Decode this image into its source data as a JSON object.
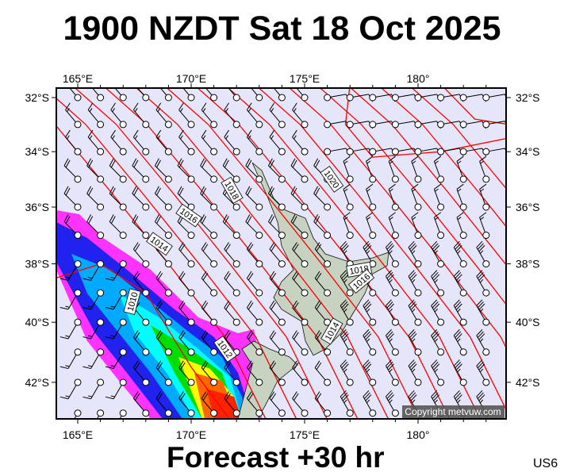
{
  "title": "1900 NZDT Sat 18 Oct 2025",
  "footer": "Forecast +30 hr",
  "model_code": "US6",
  "copyright": "Copyright metvuw.com",
  "colors": {
    "background": "#e6e6fa",
    "isobar": "#ff0000",
    "land": "#c8d2c0",
    "frame": "#000000"
  },
  "axes": {
    "lon_ticks": [
      {
        "value": 165,
        "label": "165°E"
      },
      {
        "value": 170,
        "label": "170°E"
      },
      {
        "value": 175,
        "label": "175°E"
      },
      {
        "value": 180,
        "label": "180°"
      }
    ],
    "lat_ticks": [
      {
        "value": -32,
        "label": "32°S"
      },
      {
        "value": -34,
        "label": "34°S"
      },
      {
        "value": -36,
        "label": "36°S"
      },
      {
        "value": -38,
        "label": "38°S"
      },
      {
        "value": -40,
        "label": "40°S"
      },
      {
        "value": -42,
        "label": "42°S"
      }
    ],
    "lon_range": [
      164.06,
      183.9
    ],
    "lat_range": [
      -31.65,
      -43.3
    ]
  },
  "isobar_labels": [
    {
      "text": "1020",
      "lon": 176.2,
      "lat": -35.0,
      "angle": 55
    },
    {
      "text": "1018",
      "lon": 171.8,
      "lat": -35.4,
      "angle": 60
    },
    {
      "text": "1016",
      "lon": 169.9,
      "lat": -36.3,
      "angle": 35
    },
    {
      "text": "1014",
      "lon": 168.6,
      "lat": -37.3,
      "angle": 35
    },
    {
      "text": "1010",
      "lon": 167.4,
      "lat": -39.3,
      "angle": -75
    },
    {
      "text": "1012",
      "lon": 171.5,
      "lat": -40.9,
      "angle": 55
    },
    {
      "text": "1014",
      "lon": 176.2,
      "lat": -40.3,
      "angle": -60
    },
    {
      "text": "1018",
      "lon": 177.4,
      "lat": -38.2,
      "angle": -10
    },
    {
      "text": "1016",
      "lon": 177.5,
      "lat": -38.6,
      "angle": -40
    }
  ],
  "wind_rules": [
    {
      "lat": [
        -32,
        -34
      ],
      "lon": [
        165,
        175
      ],
      "dir": 320,
      "kt": 15
    },
    {
      "lat": [
        -32,
        -34
      ],
      "lon": [
        176,
        183
      ],
      "dir": 80,
      "kt": 10
    },
    {
      "lat": [
        -35,
        -37
      ],
      "lon": [
        165,
        176
      ],
      "dir": 315,
      "kt": 20
    },
    {
      "lat": [
        -35,
        -37
      ],
      "lon": [
        177,
        183
      ],
      "dir": 340,
      "kt": 15
    },
    {
      "lat": [
        -38,
        -43
      ],
      "lon": [
        165,
        167
      ],
      "dir": 210,
      "kt": 15
    },
    {
      "lat": [
        -38,
        -43
      ],
      "lon": [
        168,
        176
      ],
      "dir": 320,
      "kt": 20
    },
    {
      "lat": [
        -38,
        -43
      ],
      "lon": [
        177,
        183
      ],
      "dir": 330,
      "kt": 35
    }
  ]
}
